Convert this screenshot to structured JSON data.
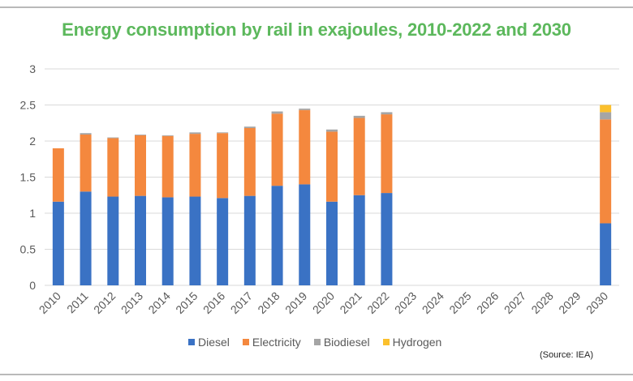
{
  "chart_data": {
    "type": "bar",
    "stacked": true,
    "title": "Energy consumption by rail in exajoules, 2010-2022 and 2030",
    "xlabel": "",
    "ylabel": "",
    "ylim": [
      0,
      3
    ],
    "yticks": [
      "0",
      "0.5",
      "1",
      "1.5",
      "2",
      "2.5",
      "3"
    ],
    "grid": true,
    "legend_position": "bottom",
    "categories": [
      "2010",
      "2011",
      "2012",
      "2013",
      "2014",
      "2015",
      "2016",
      "2017",
      "2018",
      "2019",
      "2020",
      "2021",
      "2022",
      "2023",
      "2024",
      "2025",
      "2026",
      "2027",
      "2028",
      "2029",
      "2030"
    ],
    "series": [
      {
        "name": "Diesel",
        "color": "#3a72c4",
        "values": [
          1.16,
          1.3,
          1.23,
          1.24,
          1.22,
          1.23,
          1.21,
          1.24,
          1.38,
          1.4,
          1.16,
          1.25,
          1.28,
          null,
          null,
          null,
          null,
          null,
          null,
          null,
          0.86
        ]
      },
      {
        "name": "Electricity",
        "color": "#f4883e",
        "values": [
          0.74,
          0.79,
          0.81,
          0.84,
          0.85,
          0.87,
          0.9,
          0.94,
          1.0,
          1.03,
          0.97,
          1.07,
          1.09,
          null,
          null,
          null,
          null,
          null,
          null,
          null,
          1.44
        ]
      },
      {
        "name": "Biodiesel",
        "color": "#a5a5a5",
        "values": [
          0.0,
          0.02,
          0.01,
          0.01,
          0.01,
          0.02,
          0.01,
          0.02,
          0.03,
          0.02,
          0.03,
          0.03,
          0.03,
          null,
          null,
          null,
          null,
          null,
          null,
          null,
          0.1
        ]
      },
      {
        "name": "Hydrogen",
        "color": "#fbc02d",
        "values": [
          0,
          0,
          0,
          0,
          0,
          0,
          0,
          0,
          0,
          0,
          0,
          0,
          0,
          null,
          null,
          null,
          null,
          null,
          null,
          null,
          0.1
        ]
      }
    ],
    "source": "(Source: IEA)"
  }
}
